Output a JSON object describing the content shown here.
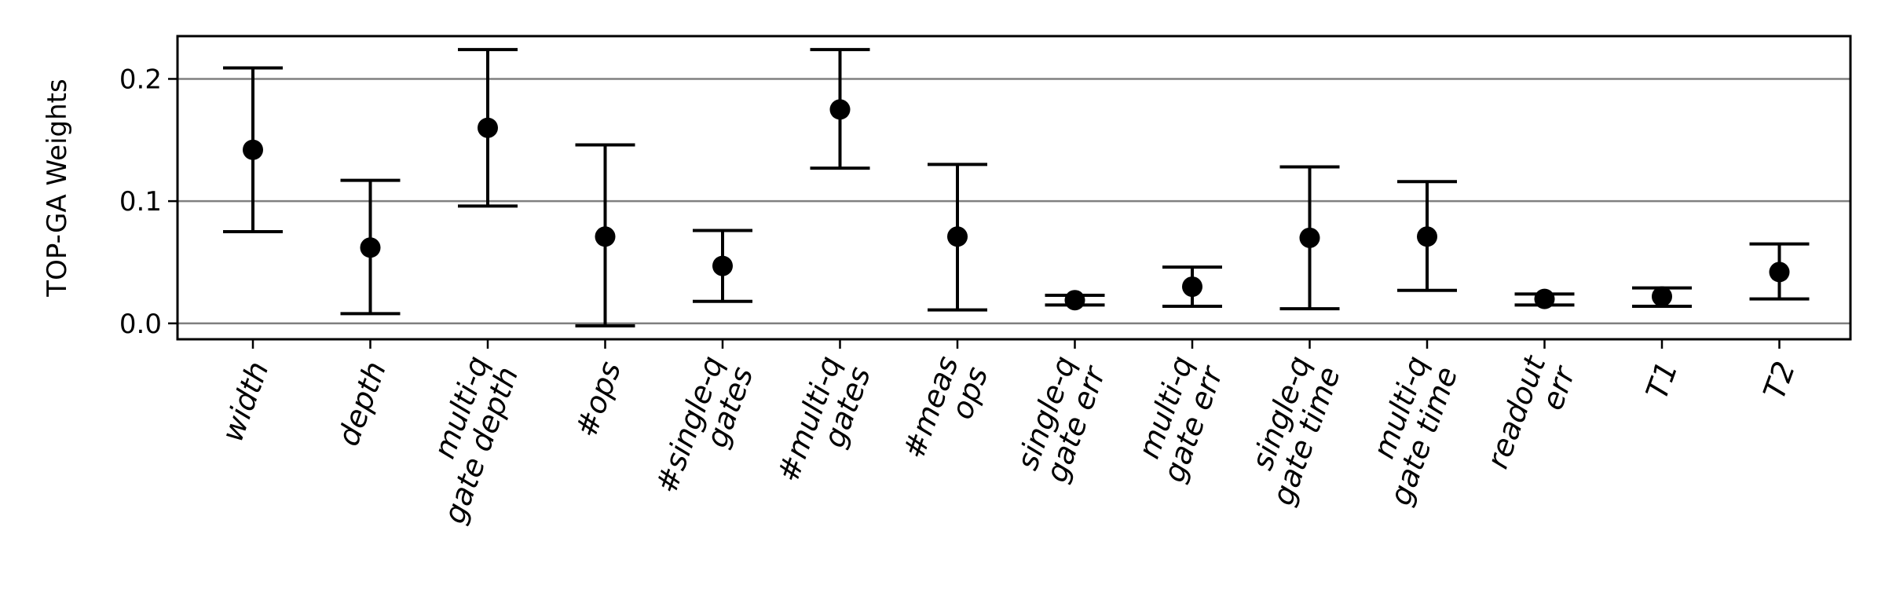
{
  "chart_data": {
    "type": "scatter",
    "ylabel": "TOP-GA Weights",
    "xlabel": "",
    "ylim": [
      -0.013,
      0.235
    ],
    "yticks": [
      0.0,
      0.1,
      0.2
    ],
    "ytick_labels": [
      "0.0",
      "0.1",
      "0.2"
    ],
    "grid": "horizontal at y ticks",
    "marker_color": "#000000",
    "categories": [
      {
        "lines": [
          "width"
        ],
        "mean": 0.142,
        "lower": 0.075,
        "upper": 0.209
      },
      {
        "lines": [
          "depth"
        ],
        "mean": 0.062,
        "lower": 0.008,
        "upper": 0.117
      },
      {
        "lines": [
          "multi-q",
          "gate depth"
        ],
        "mean": 0.16,
        "lower": 0.096,
        "upper": 0.224
      },
      {
        "lines": [
          "#ops"
        ],
        "mean": 0.071,
        "lower": -0.002,
        "upper": 0.146
      },
      {
        "lines": [
          "#single-q",
          "gates"
        ],
        "mean": 0.047,
        "lower": 0.018,
        "upper": 0.076
      },
      {
        "lines": [
          "#multi-q",
          "gates"
        ],
        "mean": 0.175,
        "lower": 0.127,
        "upper": 0.224
      },
      {
        "lines": [
          "#meas",
          "ops"
        ],
        "mean": 0.071,
        "lower": 0.011,
        "upper": 0.13
      },
      {
        "lines": [
          "single-q",
          "gate err"
        ],
        "mean": 0.019,
        "lower": 0.015,
        "upper": 0.023
      },
      {
        "lines": [
          "multi-q",
          "gate err"
        ],
        "mean": 0.03,
        "lower": 0.014,
        "upper": 0.046
      },
      {
        "lines": [
          "single-q",
          "gate time"
        ],
        "mean": 0.07,
        "lower": 0.012,
        "upper": 0.128
      },
      {
        "lines": [
          "multi-q",
          "gate time"
        ],
        "mean": 0.071,
        "lower": 0.027,
        "upper": 0.116
      },
      {
        "lines": [
          "readout",
          "err"
        ],
        "mean": 0.02,
        "lower": 0.015,
        "upper": 0.024
      },
      {
        "lines": [
          "T1"
        ],
        "mean": 0.022,
        "lower": 0.014,
        "upper": 0.029
      },
      {
        "lines": [
          "T2"
        ],
        "mean": 0.042,
        "lower": 0.02,
        "upper": 0.065
      }
    ]
  }
}
